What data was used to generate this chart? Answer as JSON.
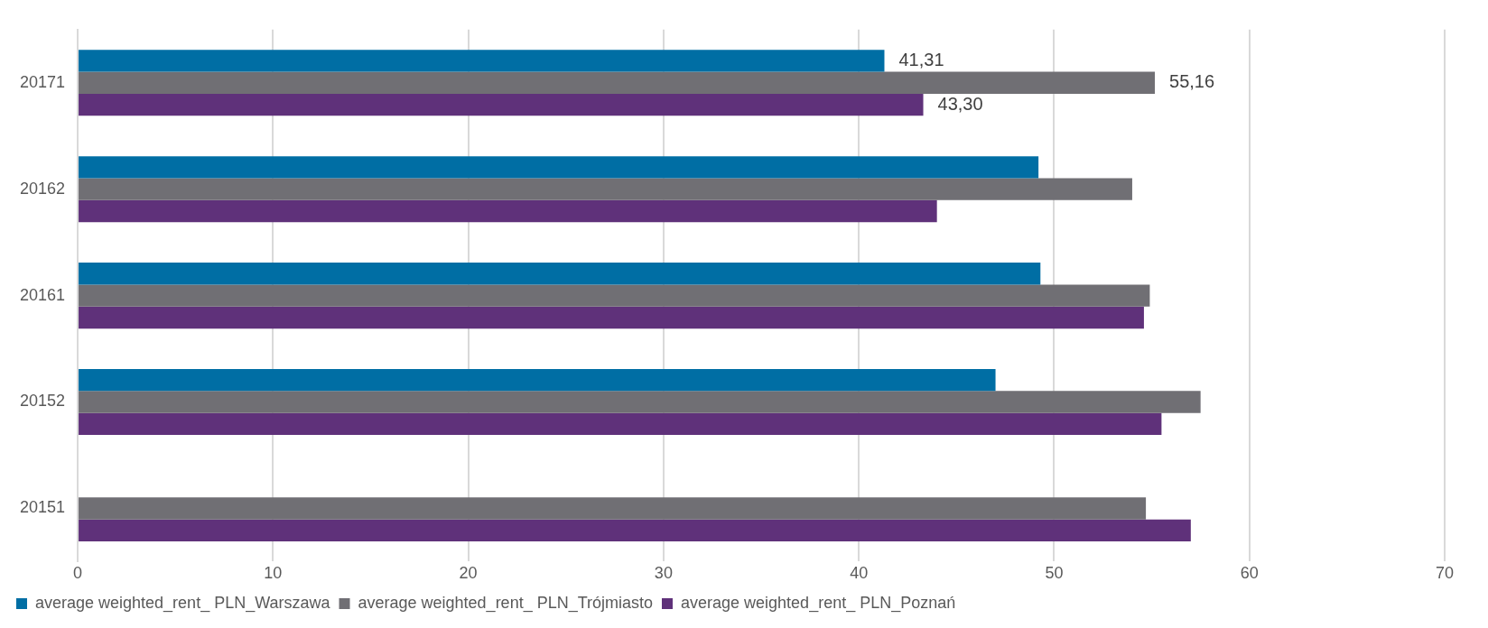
{
  "chart_data": {
    "type": "bar",
    "orientation": "horizontal",
    "categories": [
      "20171",
      "20162",
      "20161",
      "20152",
      "20151"
    ],
    "series": [
      {
        "name": "average weighted_rent_ PLN_Warszawa",
        "color": "#006ea4",
        "values": [
          41.31,
          49.2,
          49.3,
          47.0,
          null
        ],
        "value_labels": [
          "41,31",
          null,
          null,
          null,
          null
        ]
      },
      {
        "name": "average weighted_rent_ PLN_Trójmiasto",
        "color": "#706f74",
        "values": [
          55.16,
          54.0,
          54.9,
          57.5,
          54.7
        ],
        "value_labels": [
          "55,16",
          null,
          null,
          null,
          null
        ]
      },
      {
        "name": "average weighted_rent_ PLN_Poznań",
        "color": "#5f317a",
        "values": [
          43.3,
          44.0,
          54.6,
          55.5,
          57.0
        ],
        "value_labels": [
          "43,30",
          null,
          null,
          null,
          null
        ]
      }
    ],
    "xlim": [
      0,
      70
    ],
    "xticks": [
      0,
      10,
      20,
      30,
      40,
      50,
      60,
      70
    ],
    "grid": "x",
    "legend": "bottom left"
  }
}
